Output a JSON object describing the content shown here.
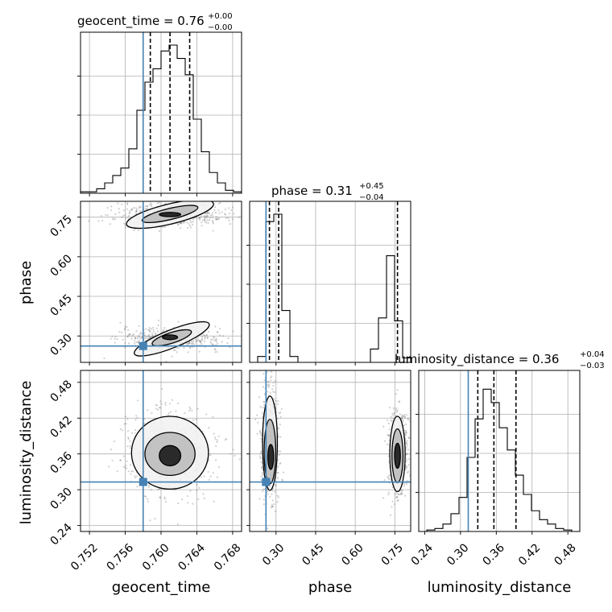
{
  "chart_data": {
    "type": "corner",
    "truth_color": "#4682b4",
    "parameters": [
      {
        "name": "geocent_time",
        "title_prefix": "geocent_time = ",
        "median": "0.76",
        "plus": "+0.00",
        "minus": "−0.00",
        "range": [
          0.751,
          0.769
        ],
        "ticks": [
          "0.752",
          "0.756",
          "0.760",
          "0.764",
          "0.768"
        ],
        "tick_values": [
          0.752,
          0.756,
          0.76,
          0.764,
          0.768
        ],
        "quantiles": [
          0.7588,
          0.761,
          0.7632
        ],
        "truth": 0.758,
        "hist_edges_start": 0.751,
        "hist_bin_width": 0.0009,
        "hist_counts": [
          0.01,
          0.01,
          0.03,
          0.07,
          0.12,
          0.17,
          0.3,
          0.56,
          0.75,
          0.84,
          0.96,
          1.0,
          0.91,
          0.8,
          0.5,
          0.28,
          0.14,
          0.07,
          0.02,
          0.01
        ]
      },
      {
        "name": "phase",
        "title_prefix": "phase = ",
        "median": "0.31",
        "plus": "+0.45",
        "minus": "−0.04",
        "range": [
          0.2,
          0.81
        ],
        "ticks": [
          "0.30",
          "0.45",
          "0.60",
          "0.75"
        ],
        "tick_values": [
          0.3,
          0.45,
          0.6,
          0.75
        ],
        "quantiles": [
          0.275,
          0.31,
          0.76
        ],
        "truth": 0.262,
        "hist_edges_start": 0.2,
        "hist_bin_width": 0.0305,
        "hist_counts": [
          0.0,
          0.04,
          0.95,
          1.0,
          0.35,
          0.04,
          0.0,
          0.0,
          0.0,
          0.0,
          0.0,
          0.0,
          0.0,
          0.0,
          0.0,
          0.09,
          0.3,
          0.72,
          0.28,
          0.03
        ]
      },
      {
        "name": "luminosity_distance",
        "title_prefix": "luminosity_distance = ",
        "median": "0.36",
        "plus": "+0.04",
        "minus": "−0.03",
        "range": [
          0.23,
          0.5
        ],
        "ticks": [
          "0.24",
          "0.30",
          "0.36",
          "0.42",
          "0.48"
        ],
        "tick_values": [
          0.24,
          0.3,
          0.36,
          0.42,
          0.48
        ],
        "quantiles": [
          0.329,
          0.356,
          0.393
        ],
        "truth": 0.313,
        "hist_edges_start": 0.23,
        "hist_bin_width": 0.0135,
        "hist_counts": [
          0.0,
          0.01,
          0.02,
          0.05,
          0.12,
          0.23,
          0.5,
          0.76,
          0.96,
          0.87,
          0.7,
          0.55,
          0.38,
          0.25,
          0.14,
          0.08,
          0.05,
          0.02,
          0.01,
          0.0
        ]
      }
    ],
    "pairs": [
      {
        "x": 0,
        "y": 1,
        "truth": [
          0.758,
          0.262
        ],
        "contours": [
          {
            "cx": 0.761,
            "cy": 0.295,
            "rx": 0.00085,
            "ry": 0.009,
            "tilt": 0.0
          },
          {
            "cx": 0.7612,
            "cy": 0.293,
            "rx": 0.0023,
            "ry": 0.02,
            "tilt": 0.08
          },
          {
            "cx": 0.7612,
            "cy": 0.289,
            "rx": 0.0045,
            "ry": 0.034,
            "tilt": 0.1
          },
          {
            "cx": 0.761,
            "cy": 0.76,
            "rx": 0.0012,
            "ry": 0.008,
            "tilt": 0.0
          },
          {
            "cx": 0.761,
            "cy": 0.762,
            "rx": 0.0032,
            "ry": 0.021,
            "tilt": 0.06
          },
          {
            "cx": 0.761,
            "cy": 0.762,
            "rx": 0.005,
            "ry": 0.038,
            "tilt": 0.06
          }
        ]
      },
      {
        "x": 0,
        "y": 2,
        "truth": [
          0.758,
          0.313
        ],
        "contours": [
          {
            "cx": 0.761,
            "cy": 0.357,
            "rx": 0.0012,
            "ry": 0.017,
            "tilt": 0.0
          },
          {
            "cx": 0.761,
            "cy": 0.36,
            "rx": 0.0028,
            "ry": 0.036,
            "tilt": 0.0
          },
          {
            "cx": 0.761,
            "cy": 0.362,
            "rx": 0.0043,
            "ry": 0.061,
            "tilt": 0.0
          }
        ]
      },
      {
        "x": 1,
        "y": 2,
        "truth": [
          0.262,
          0.313
        ],
        "contours": [
          {
            "cx": 0.28,
            "cy": 0.355,
            "rx": 0.011,
            "ry": 0.021,
            "tilt": 0.0
          },
          {
            "cx": 0.277,
            "cy": 0.364,
            "rx": 0.022,
            "ry": 0.054,
            "tilt": 0.0
          },
          {
            "cx": 0.277,
            "cy": 0.378,
            "rx": 0.028,
            "ry": 0.079,
            "tilt": 0.0
          },
          {
            "cx": 0.76,
            "cy": 0.357,
            "rx": 0.011,
            "ry": 0.021,
            "tilt": 0.0
          },
          {
            "cx": 0.76,
            "cy": 0.357,
            "rx": 0.021,
            "ry": 0.045,
            "tilt": 0.0
          },
          {
            "cx": 0.76,
            "cy": 0.36,
            "rx": 0.029,
            "ry": 0.063,
            "tilt": 0.0
          }
        ]
      }
    ]
  }
}
